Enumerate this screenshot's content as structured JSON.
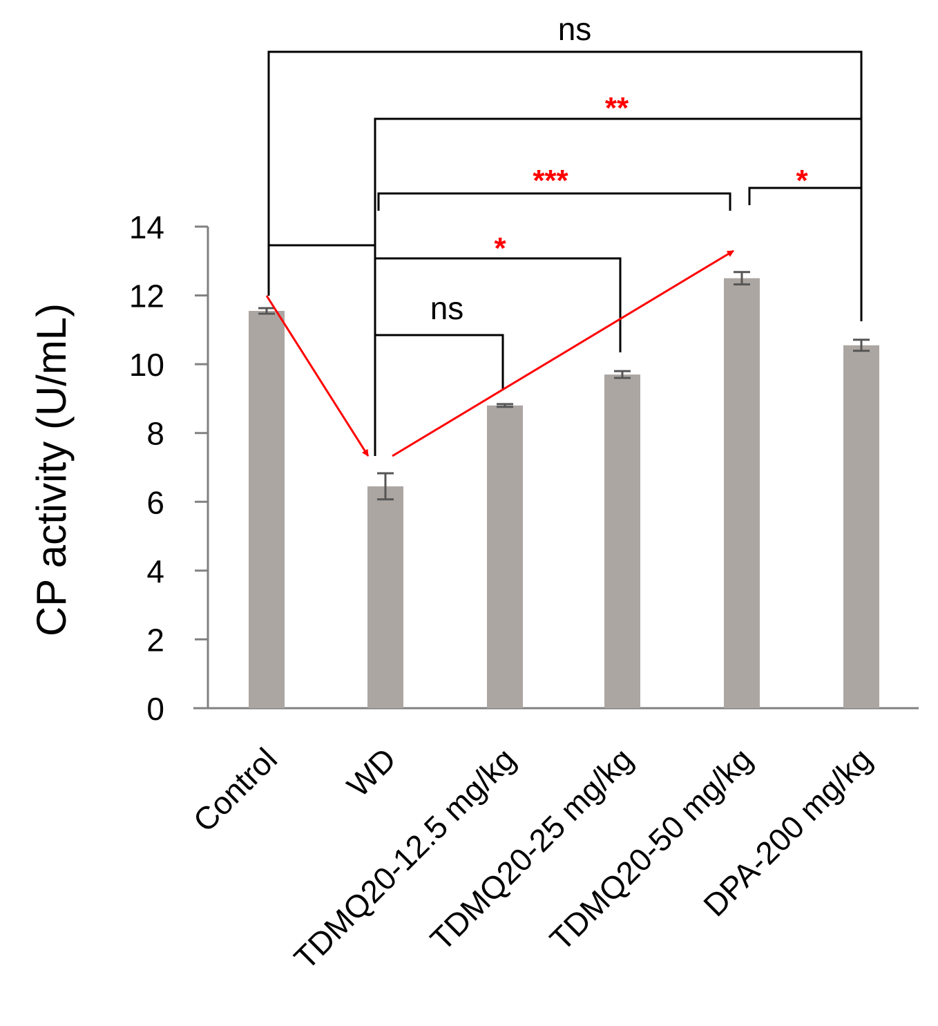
{
  "chart_data": {
    "type": "bar",
    "title": "",
    "xlabel": "",
    "ylabel": "CP activity (U/mL)",
    "ylim": [
      0,
      14
    ],
    "yticks": [
      0,
      2,
      4,
      6,
      8,
      10,
      12,
      14
    ],
    "grid": false,
    "categories": [
      "Control",
      "WD",
      "TDMQ20-12.5 mg/kg",
      "TDMQ20-25 mg/kg",
      "TDMQ20-50 mg/kg",
      "DPA-200 mg/kg"
    ],
    "values": [
      11.55,
      6.45,
      8.8,
      9.7,
      12.5,
      10.55
    ],
    "errors": [
      0.08,
      0.38,
      0.04,
      0.1,
      0.18,
      0.16
    ],
    "bar_color": "#aca6a3",
    "significance": [
      {
        "from": "WD",
        "to": "TDMQ20-12.5 mg/kg",
        "label": "ns",
        "color": "#000000"
      },
      {
        "from": "WD",
        "to": "TDMQ20-25 mg/kg",
        "label": "*",
        "color": "#ff0000"
      },
      {
        "from": "WD",
        "to": "TDMQ20-50 mg/kg",
        "label": "***",
        "color": "#ff0000"
      },
      {
        "from": "TDMQ20-50 mg/kg",
        "to": "DPA-200 mg/kg",
        "label": "*",
        "color": "#ff0000"
      },
      {
        "from": "WD",
        "to": "DPA-200 mg/kg",
        "label": "**",
        "color": "#ff0000"
      },
      {
        "from": "Control",
        "to": "DPA-200 mg/kg",
        "label": "ns",
        "color": "#000000"
      }
    ],
    "trend_arrows": [
      {
        "from": "Control",
        "to": "WD",
        "color": "#ff0000"
      },
      {
        "from": "WD",
        "to": "TDMQ20-50 mg/kg",
        "color": "#ff0000"
      }
    ]
  }
}
